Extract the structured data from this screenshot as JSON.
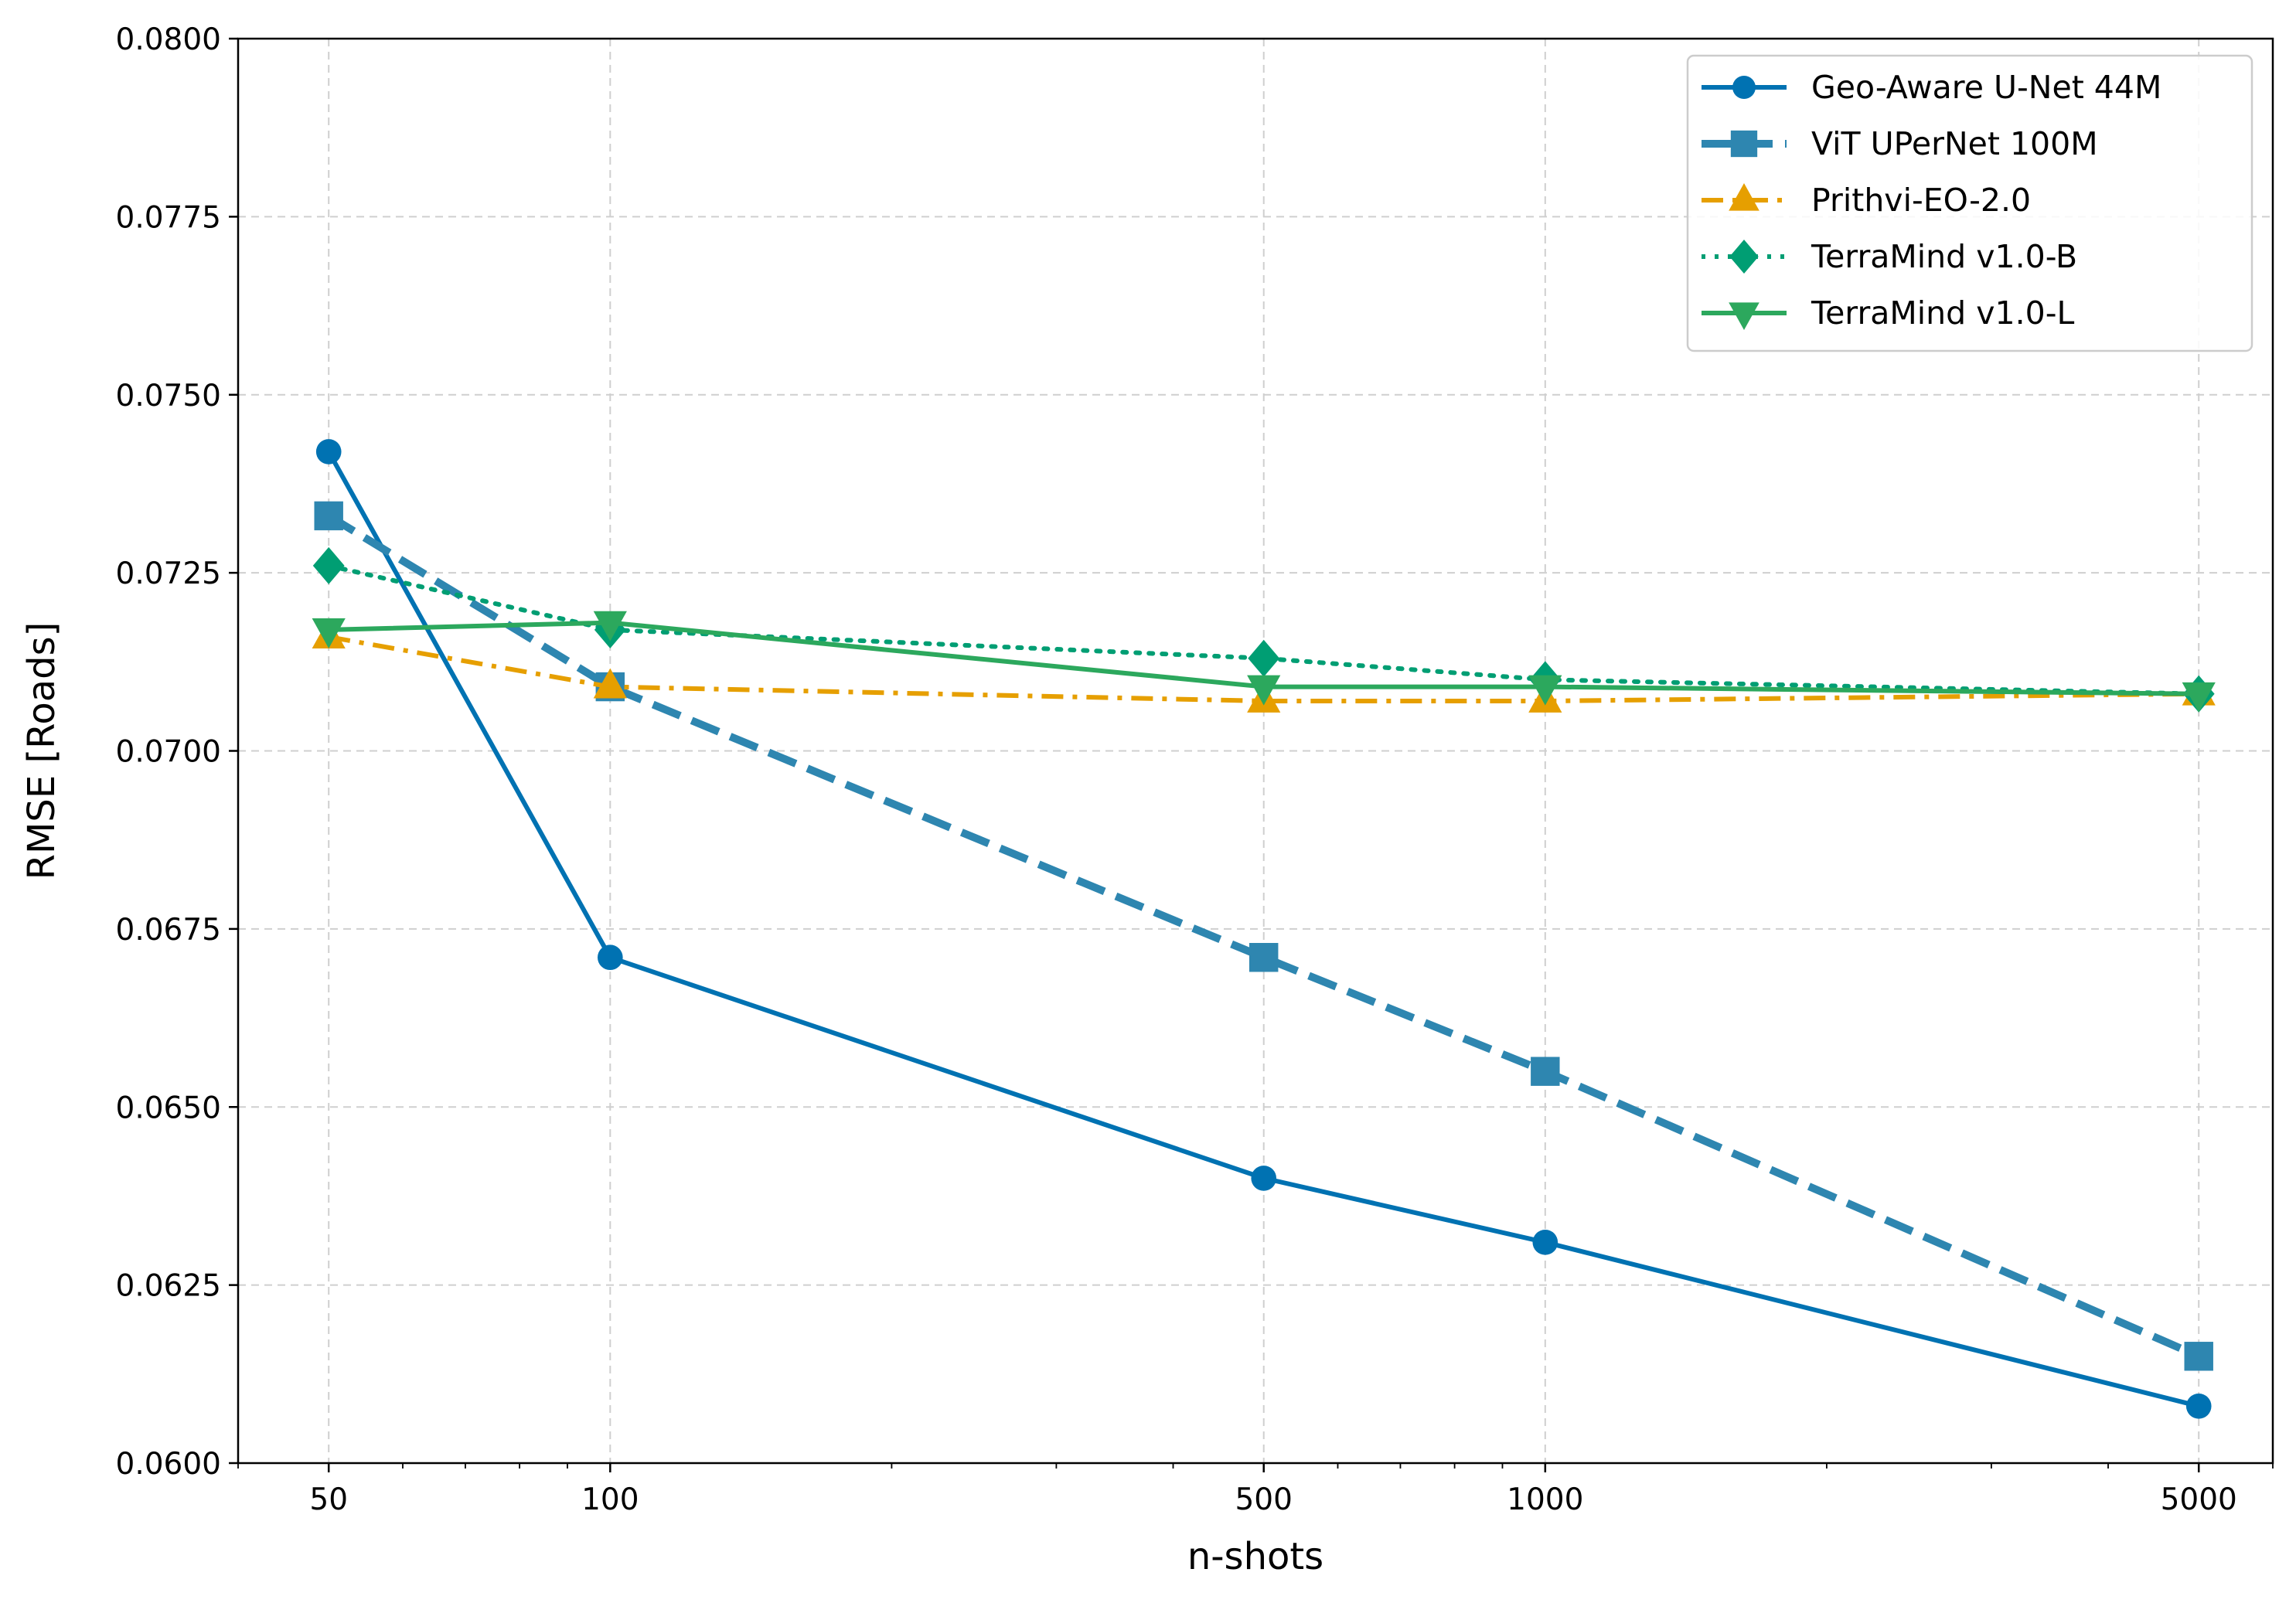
{
  "chart_data": {
    "type": "line",
    "title": "",
    "xlabel": "n-shots",
    "ylabel": "RMSE [Roads]",
    "xscale": "log",
    "xlim": [
      40,
      6000
    ],
    "ylim": [
      0.06,
      0.08
    ],
    "grid": true,
    "legend_position": "top-right",
    "x": [
      50,
      100,
      500,
      1000,
      5000
    ],
    "x_tick_labels": [
      "50",
      "100",
      "500",
      "1000",
      "5000"
    ],
    "y_ticks": [
      0.06,
      0.0625,
      0.065,
      0.0675,
      0.07,
      0.0725,
      0.075,
      0.0775,
      0.08
    ],
    "y_tick_labels": [
      "0.0600",
      "0.0625",
      "0.0650",
      "0.0675",
      "0.0700",
      "0.0725",
      "0.0750",
      "0.0775",
      "0.0800"
    ],
    "series": [
      {
        "name": "Geo-Aware U-Net 44M",
        "values": [
          0.0742,
          0.0671,
          0.064,
          0.0631,
          0.0608
        ],
        "color": "#0072b2",
        "marker": "circle",
        "dash": "solid",
        "width": 6
      },
      {
        "name": "ViT UPerNet 100M",
        "values": [
          0.0733,
          0.0709,
          0.0671,
          0.0655,
          0.0615
        ],
        "color": "#2e86b0",
        "marker": "square",
        "dash": "dashed",
        "width": 10
      },
      {
        "name": "Prithvi-EO-2.0",
        "values": [
          0.0716,
          0.0709,
          0.0707,
          0.0707,
          0.0708
        ],
        "color": "#e69f00",
        "marker": "triangle-up",
        "dash": "dashdot",
        "width": 6
      },
      {
        "name": "TerraMind v1.0-B",
        "values": [
          0.0726,
          0.0717,
          0.0713,
          0.071,
          0.0708
        ],
        "color": "#009e73",
        "marker": "diamond",
        "dash": "dotted",
        "width": 6
      },
      {
        "name": "TerraMind v1.0-L",
        "values": [
          0.0717,
          0.0718,
          0.0709,
          0.0709,
          0.0708
        ],
        "color": "#2ca85d",
        "marker": "triangle-down",
        "dash": "solid",
        "width": 6
      }
    ]
  }
}
